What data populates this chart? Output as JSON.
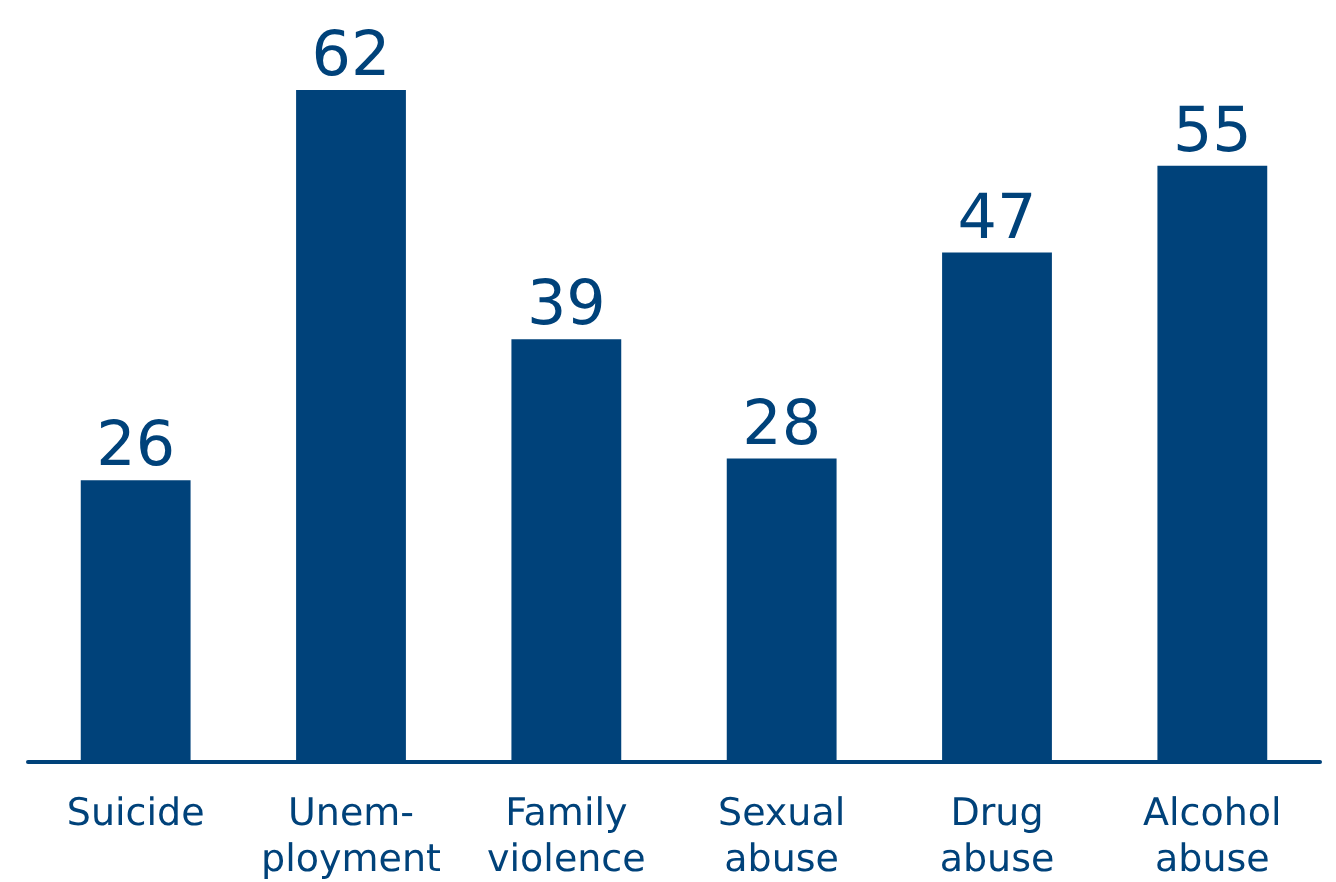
{
  "chart_data": {
    "type": "bar",
    "categories": [
      "Suicide",
      "Unem-\nployment",
      "Family\nviolence",
      "Sexual\nabuse",
      "Drug\nabuse",
      "Alcohol\nabuse"
    ],
    "values": [
      26,
      62,
      39,
      28,
      47,
      55
    ],
    "color": "#00427a",
    "data_labels": true
  }
}
